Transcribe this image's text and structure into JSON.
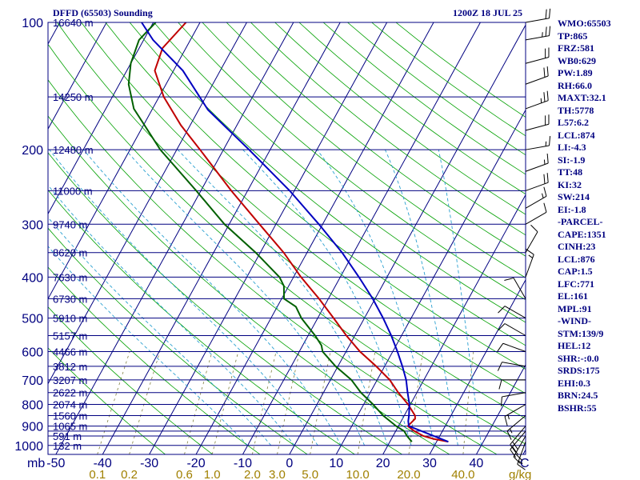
{
  "header": {
    "station": "DFFD (65503) Sounding",
    "time": "1200Z 18 JUL 25"
  },
  "colors": {
    "isobar": "#000080",
    "isotherm": "#000080",
    "dry_adiabat": "#00a000",
    "moist_adiabat": "#2aa0d0",
    "mixing_ratio": "#808040",
    "temperature": "#c00000",
    "dewpoint": "#006000",
    "parcel": "#0000c0",
    "tick_label": "#000080",
    "mixing_label": "#a08000"
  },
  "stats": [
    "WMO:65503",
    "TP:865",
    "FRZ:581",
    "WB0:629",
    "PW:1.89",
    "RH:66.0",
    "MAXT:32.1",
    "TH:5778",
    "L57:6.2",
    "LCL:874",
    "LI:-4.3",
    "SI:-1.9",
    "TT:48",
    "KI:32",
    "SW:214",
    "EI:-1.8",
    "-PARCEL-",
    "CAPE:1351",
    "CINH:23",
    "LCL:876",
    "CAP:1.5",
    "LFC:771",
    "EL:161",
    "MPL:91",
    "-WIND-",
    "STM:139/9",
    "HEL:12",
    "SHR:-:0.0",
    "SRDS:175",
    "EHI:0.3",
    "BRN:24.5",
    "BSHR:55"
  ],
  "chart_data": {
    "type": "skew-t",
    "y_axis": {
      "unit": "mb",
      "pressure_ticks": [
        100,
        200,
        300,
        400,
        500,
        600,
        700,
        800,
        900,
        1000
      ],
      "isobars": [
        100,
        150,
        200,
        250,
        300,
        350,
        400,
        450,
        500,
        550,
        600,
        650,
        700,
        750,
        800,
        850,
        900,
        925,
        950,
        1000
      ],
      "height_labels": [
        {
          "p": 100,
          "text": "16640 m"
        },
        {
          "p": 150,
          "text": "14250 m"
        },
        {
          "p": 200,
          "text": "12480 m"
        },
        {
          "p": 250,
          "text": "11000 m"
        },
        {
          "p": 300,
          "text": "9740 m"
        },
        {
          "p": 350,
          "text": "8620 m"
        },
        {
          "p": 400,
          "text": "7630 m"
        },
        {
          "p": 450,
          "text": "6730 m"
        },
        {
          "p": 500,
          "text": "5910 m"
        },
        {
          "p": 550,
          "text": "5157 m"
        },
        {
          "p": 600,
          "text": "4466 m"
        },
        {
          "p": 650,
          "text": "3812 m"
        },
        {
          "p": 700,
          "text": "3207 m"
        },
        {
          "p": 750,
          "text": "2622 m"
        },
        {
          "p": 800,
          "text": "2074 m"
        },
        {
          "p": 850,
          "text": "1560 m"
        },
        {
          "p": 900,
          "text": "1065 m"
        },
        {
          "p": 950,
          "text": "591 m"
        },
        {
          "p": 1000,
          "text": "132 m"
        }
      ]
    },
    "x_axis": {
      "unit": "C",
      "temperature_ticks": [
        -50,
        -40,
        -30,
        -20,
        -10,
        0,
        10,
        20,
        30,
        40
      ],
      "mixing_ratio_unit": "g/kg",
      "mixing_ratio_labels": [
        "0.1",
        "0.2",
        "0.6",
        "1.0",
        "2.0",
        "3.0",
        "5.0",
        "10.0",
        "20.0",
        "40.0"
      ]
    },
    "series": [
      {
        "points": [
          {
            "p": 980,
            "t": 32.5
          },
          {
            "p": 965,
            "t": 29.0
          },
          {
            "p": 950,
            "t": 26.5
          },
          {
            "p": 925,
            "t": 24.0
          },
          {
            "p": 900,
            "t": 22.0
          },
          {
            "p": 865,
            "t": 22.7
          },
          {
            "p": 850,
            "t": 22.3
          },
          {
            "p": 800,
            "t": 19.5
          },
          {
            "p": 750,
            "t": 16.0
          },
          {
            "p": 700,
            "t": 12.7
          },
          {
            "p": 650,
            "t": 8.2
          },
          {
            "p": 600,
            "t": 3.0
          },
          {
            "p": 550,
            "t": -1.8
          },
          {
            "p": 500,
            "t": -6.6
          },
          {
            "p": 450,
            "t": -12.0
          },
          {
            "p": 400,
            "t": -18.4
          },
          {
            "p": 350,
            "t": -25.0
          },
          {
            "p": 300,
            "t": -33.5
          },
          {
            "p": 250,
            "t": -43.5
          },
          {
            "p": 200,
            "t": -55.0
          },
          {
            "p": 175,
            "t": -62.0
          },
          {
            "p": 150,
            "t": -69.0
          },
          {
            "p": 130,
            "t": -74.0
          },
          {
            "p": 115,
            "t": -75.0
          },
          {
            "p": 100,
            "t": -73.0
          }
        ]
      },
      {
        "points": [
          {
            "p": 980,
            "t": 24.7
          },
          {
            "p": 950,
            "t": 23.0
          },
          {
            "p": 925,
            "t": 21.8
          },
          {
            "p": 900,
            "t": 19.5
          },
          {
            "p": 850,
            "t": 15.5
          },
          {
            "p": 800,
            "t": 12.0
          },
          {
            "p": 750,
            "t": 8.0
          },
          {
            "p": 700,
            "t": 4.5
          },
          {
            "p": 650,
            "t": -0.5
          },
          {
            "p": 600,
            "t": -5.0
          },
          {
            "p": 580,
            "t": -6.0
          },
          {
            "p": 550,
            "t": -8.5
          },
          {
            "p": 500,
            "t": -13.5
          },
          {
            "p": 470,
            "t": -16.0
          },
          {
            "p": 450,
            "t": -19.5
          },
          {
            "p": 420,
            "t": -21.0
          },
          {
            "p": 400,
            "t": -23.0
          },
          {
            "p": 350,
            "t": -31.0
          },
          {
            "p": 300,
            "t": -41.0
          },
          {
            "p": 250,
            "t": -51.0
          },
          {
            "p": 200,
            "t": -63.5
          },
          {
            "p": 160,
            "t": -74.0
          },
          {
            "p": 140,
            "t": -78.0
          },
          {
            "p": 125,
            "t": -80.0
          },
          {
            "p": 110,
            "t": -81.0
          },
          {
            "p": 100,
            "t": -79.5
          }
        ]
      },
      {
        "points": [
          {
            "p": 980,
            "t": 32.5
          },
          {
            "p": 900,
            "t": 22.2
          },
          {
            "p": 876,
            "t": 21.5
          },
          {
            "p": 850,
            "t": 21.0
          },
          {
            "p": 800,
            "t": 19.8
          },
          {
            "p": 750,
            "t": 18.0
          },
          {
            "p": 700,
            "t": 16.2
          },
          {
            "p": 650,
            "t": 13.8
          },
          {
            "p": 600,
            "t": 11.0
          },
          {
            "p": 550,
            "t": 7.8
          },
          {
            "p": 500,
            "t": 4.0
          },
          {
            "p": 450,
            "t": -0.5
          },
          {
            "p": 400,
            "t": -6.0
          },
          {
            "p": 350,
            "t": -12.5
          },
          {
            "p": 300,
            "t": -20.8
          },
          {
            "p": 250,
            "t": -31.0
          },
          {
            "p": 200,
            "t": -44.5
          },
          {
            "p": 161,
            "t": -58.0
          },
          {
            "p": 130,
            "t": -68.0
          },
          {
            "p": 110,
            "t": -78.0
          },
          {
            "p": 100,
            "t": -82.5
          }
        ]
      }
    ],
    "wind_barbs": [
      {
        "p": 100,
        "dir": 80,
        "spd": 20
      },
      {
        "p": 110,
        "dir": 80,
        "spd": 25
      },
      {
        "p": 125,
        "dir": 75,
        "spd": 20
      },
      {
        "p": 140,
        "dir": 70,
        "spd": 20
      },
      {
        "p": 160,
        "dir": 70,
        "spd": 25
      },
      {
        "p": 180,
        "dir": 75,
        "spd": 20
      },
      {
        "p": 200,
        "dir": 80,
        "spd": 15
      },
      {
        "p": 225,
        "dir": 70,
        "spd": 15
      },
      {
        "p": 250,
        "dir": 70,
        "spd": 20
      },
      {
        "p": 275,
        "dir": 60,
        "spd": 15
      },
      {
        "p": 300,
        "dir": 60,
        "spd": 10
      },
      {
        "p": 350,
        "dir": 30,
        "spd": 10
      },
      {
        "p": 400,
        "dir": 20,
        "spd": 15
      },
      {
        "p": 450,
        "dir": 330,
        "spd": 10
      },
      {
        "p": 500,
        "dir": 300,
        "spd": 10
      },
      {
        "p": 550,
        "dir": 300,
        "spd": 10
      },
      {
        "p": 600,
        "dir": 290,
        "spd": 10
      },
      {
        "p": 650,
        "dir": 280,
        "spd": 10
      },
      {
        "p": 700,
        "dir": 270,
        "spd": 10
      },
      {
        "p": 750,
        "dir": 260,
        "spd": 10
      },
      {
        "p": 800,
        "dir": 240,
        "spd": 15
      },
      {
        "p": 850,
        "dir": 230,
        "spd": 15
      },
      {
        "p": 900,
        "dir": 220,
        "spd": 20
      },
      {
        "p": 925,
        "dir": 220,
        "spd": 20
      },
      {
        "p": 950,
        "dir": 210,
        "spd": 20
      },
      {
        "p": 980,
        "dir": 200,
        "spd": 15
      }
    ]
  }
}
